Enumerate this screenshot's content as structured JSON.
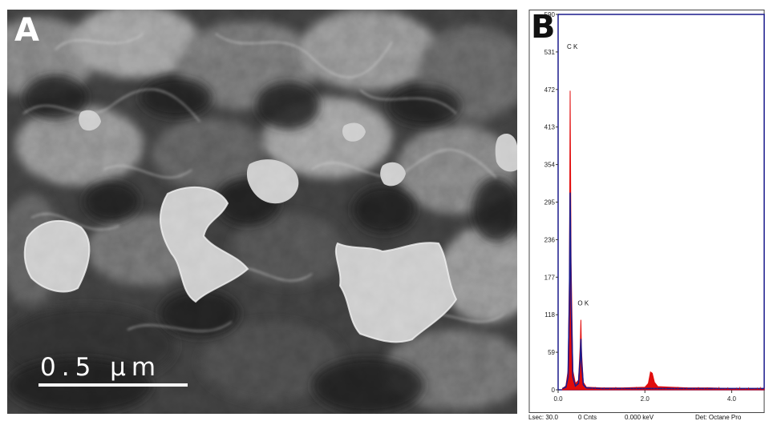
{
  "figure": {
    "panel_a_label": "A",
    "panel_b_label": "B",
    "scale_bar_label": "0.5 µm"
  },
  "chart_data": {
    "type": "line",
    "title": "",
    "xlabel": "",
    "ylabel": "",
    "xlim": [
      0,
      4.75
    ],
    "ylim": [
      0,
      590
    ],
    "y_ticks": [
      0,
      59,
      118,
      177,
      236,
      295,
      354,
      413,
      472,
      531,
      590
    ],
    "y_tick_labels": [
      "0",
      "59",
      "118",
      "177",
      "236",
      "295",
      "354",
      "413",
      "472",
      "531",
      "590"
    ],
    "x_ticks": [
      0,
      2,
      4
    ],
    "x_tick_labels": [
      "0.0",
      "2.0",
      "4.0"
    ],
    "peak_labels": [
      {
        "text": "C K",
        "x": 0.277,
        "y": 531
      },
      {
        "text": "O K",
        "x": 0.525,
        "y": 128
      }
    ],
    "series": [
      {
        "color": "#e00000",
        "x": [
          0.1,
          0.18,
          0.23,
          0.26,
          0.277,
          0.3,
          0.34,
          0.4,
          0.47,
          0.51,
          0.525,
          0.54,
          0.58,
          0.65,
          1.0,
          1.5,
          2.0,
          2.08,
          2.13,
          2.17,
          2.22,
          2.3,
          2.6,
          3.0,
          3.5,
          4.0,
          4.75
        ],
        "y": [
          2,
          6,
          30,
          180,
          470,
          200,
          30,
          10,
          15,
          70,
          110,
          60,
          12,
          4,
          3,
          3,
          4,
          10,
          28,
          26,
          12,
          5,
          4,
          3,
          3,
          2,
          2
        ]
      },
      {
        "color": "#1a1a8c",
        "x": [
          0.1,
          0.18,
          0.23,
          0.26,
          0.277,
          0.3,
          0.34,
          0.4,
          0.47,
          0.51,
          0.525,
          0.54,
          0.58,
          0.65,
          1.0,
          2.0,
          3.0,
          4.0,
          4.75
        ],
        "y": [
          2,
          4,
          20,
          140,
          310,
          140,
          20,
          6,
          10,
          50,
          80,
          45,
          8,
          3,
          2,
          2,
          2,
          2,
          2
        ]
      }
    ]
  },
  "status_bar": {
    "lsec": "Lsec: 30.0",
    "cnts": "0 Cnts",
    "kev": "0.000 keV",
    "det": "Det: Octane Pro"
  }
}
